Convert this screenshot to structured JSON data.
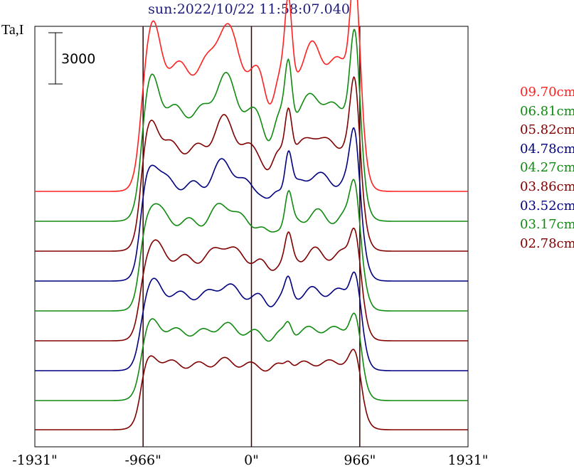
{
  "title": "sun:2022/10/22 11:58:07.040",
  "ylabel": "Ta,I",
  "scale_bar_label": "3000",
  "chart_data": {
    "type": "line",
    "title": "sun:2022/10/22 11:58:07.040",
    "ylabel": "Ta,I",
    "xlabel": "",
    "x_ticks": [
      "-1931\"",
      "-966\"",
      "0\"",
      "966\"",
      "1931\""
    ],
    "x_tick_values": [
      -1931,
      -966,
      0,
      966,
      1931
    ],
    "xlim": [
      -1931,
      1931
    ],
    "vertical_lines": [
      -966,
      0,
      966
    ],
    "scale_bar": 3000,
    "layout_note": "stacked profiles, top to bottom",
    "series": [
      {
        "name": "09.70cm",
        "color": "#ff2020"
      },
      {
        "name": "06.81cm",
        "color": "#108a10"
      },
      {
        "name": "05.82cm",
        "color": "#800000"
      },
      {
        "name": "04.78cm",
        "color": "#000080"
      },
      {
        "name": "04.27cm",
        "color": "#108a10"
      },
      {
        "name": "03.86cm",
        "color": "#800000"
      },
      {
        "name": "03.52cm",
        "color": "#000080"
      },
      {
        "name": "03.17cm",
        "color": "#108a10"
      },
      {
        "name": "02.78cm",
        "color": "#800000"
      }
    ]
  }
}
